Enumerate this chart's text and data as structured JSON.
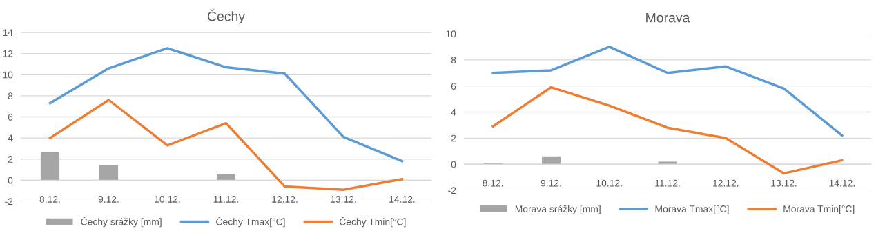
{
  "chart_data": [
    {
      "type": "bar",
      "title": "Čechy",
      "categories": [
        "8.12.",
        "9.12.",
        "10.12.",
        "11.12.",
        "12.12.",
        "13.12.",
        "14.12."
      ],
      "ylim": [
        -2,
        14
      ],
      "yticks": [
        -2,
        0,
        2,
        4,
        6,
        8,
        10,
        12,
        14
      ],
      "grid": "y",
      "legend": "bottom",
      "series": [
        {
          "name": "Čechy srážky [mm]",
          "color": "#a5a5a5",
          "values": [
            2.7,
            1.4,
            0,
            0.6,
            0,
            0,
            0
          ]
        },
        {
          "name": "Čechy Tmax[°C]",
          "type": "line",
          "color": "#5b9bd5",
          "values": [
            7.3,
            10.6,
            12.5,
            10.7,
            10.1,
            4.1,
            1.8
          ]
        },
        {
          "name": "Čechy Tmin[°C]",
          "type": "line",
          "color": "#ed7d31",
          "values": [
            4.0,
            7.6,
            3.3,
            5.4,
            -0.6,
            -0.9,
            0.1
          ]
        }
      ]
    },
    {
      "type": "bar",
      "title": "Morava",
      "categories": [
        "8.12.",
        "9.12.",
        "10.12.",
        "11.12.",
        "12.12.",
        "13.12.",
        "14.12."
      ],
      "ylim": [
        -2,
        10
      ],
      "yticks": [
        -2,
        0,
        2,
        4,
        6,
        8,
        10
      ],
      "grid": "y",
      "legend": "bottom",
      "series": [
        {
          "name": "Morava srážky [mm]",
          "color": "#a5a5a5",
          "values": [
            0.1,
            0.6,
            0,
            0.2,
            0,
            0,
            0
          ]
        },
        {
          "name": "Morava Tmax[°C]",
          "type": "line",
          "color": "#5b9bd5",
          "values": [
            7.0,
            7.2,
            9.0,
            7.0,
            7.5,
            5.8,
            2.2
          ]
        },
        {
          "name": "Morava Tmin[°C]",
          "type": "line",
          "color": "#ed7d31",
          "values": [
            2.9,
            5.9,
            4.5,
            2.8,
            2.0,
            -0.7,
            0.3
          ]
        }
      ]
    }
  ]
}
